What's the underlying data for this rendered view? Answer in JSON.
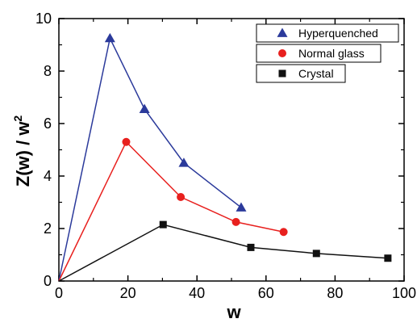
{
  "chart_data": {
    "type": "line",
    "title": "",
    "xlabel": "w",
    "ylabel_main": "Z(w) / w",
    "ylabel_superscript": "2",
    "xlim": [
      0,
      100
    ],
    "ylim": [
      0,
      10
    ],
    "x_ticks": [
      0,
      20,
      40,
      60,
      80,
      100
    ],
    "y_ticks": [
      0,
      2,
      4,
      6,
      8,
      10
    ],
    "x_tick_labels": [
      "0",
      "20",
      "40",
      "60",
      "80",
      "100"
    ],
    "y_tick_labels": [
      "0",
      "2",
      "4",
      "6",
      "8",
      "10"
    ],
    "grid": false,
    "legend_position": "top-right",
    "series": [
      {
        "name": "Hyperquenched",
        "color": "#2b3a9b",
        "marker": "triangle",
        "points": [
          [
            0,
            0
          ],
          [
            14.8,
            9.25
          ],
          [
            24.8,
            6.55
          ],
          [
            36.2,
            4.5
          ],
          [
            52.8,
            2.8
          ]
        ]
      },
      {
        "name": "Normal glass",
        "color": "#e8201e",
        "marker": "circle",
        "points": [
          [
            0,
            0
          ],
          [
            19.5,
            5.3
          ],
          [
            35.3,
            3.2
          ],
          [
            51.3,
            2.25
          ],
          [
            65.1,
            1.87
          ]
        ]
      },
      {
        "name": "Crystal",
        "color": "#111111",
        "marker": "square",
        "points": [
          [
            0,
            0
          ],
          [
            30.2,
            2.15
          ],
          [
            55.6,
            1.28
          ],
          [
            74.6,
            1.05
          ],
          [
            95.3,
            0.87
          ]
        ]
      }
    ]
  }
}
